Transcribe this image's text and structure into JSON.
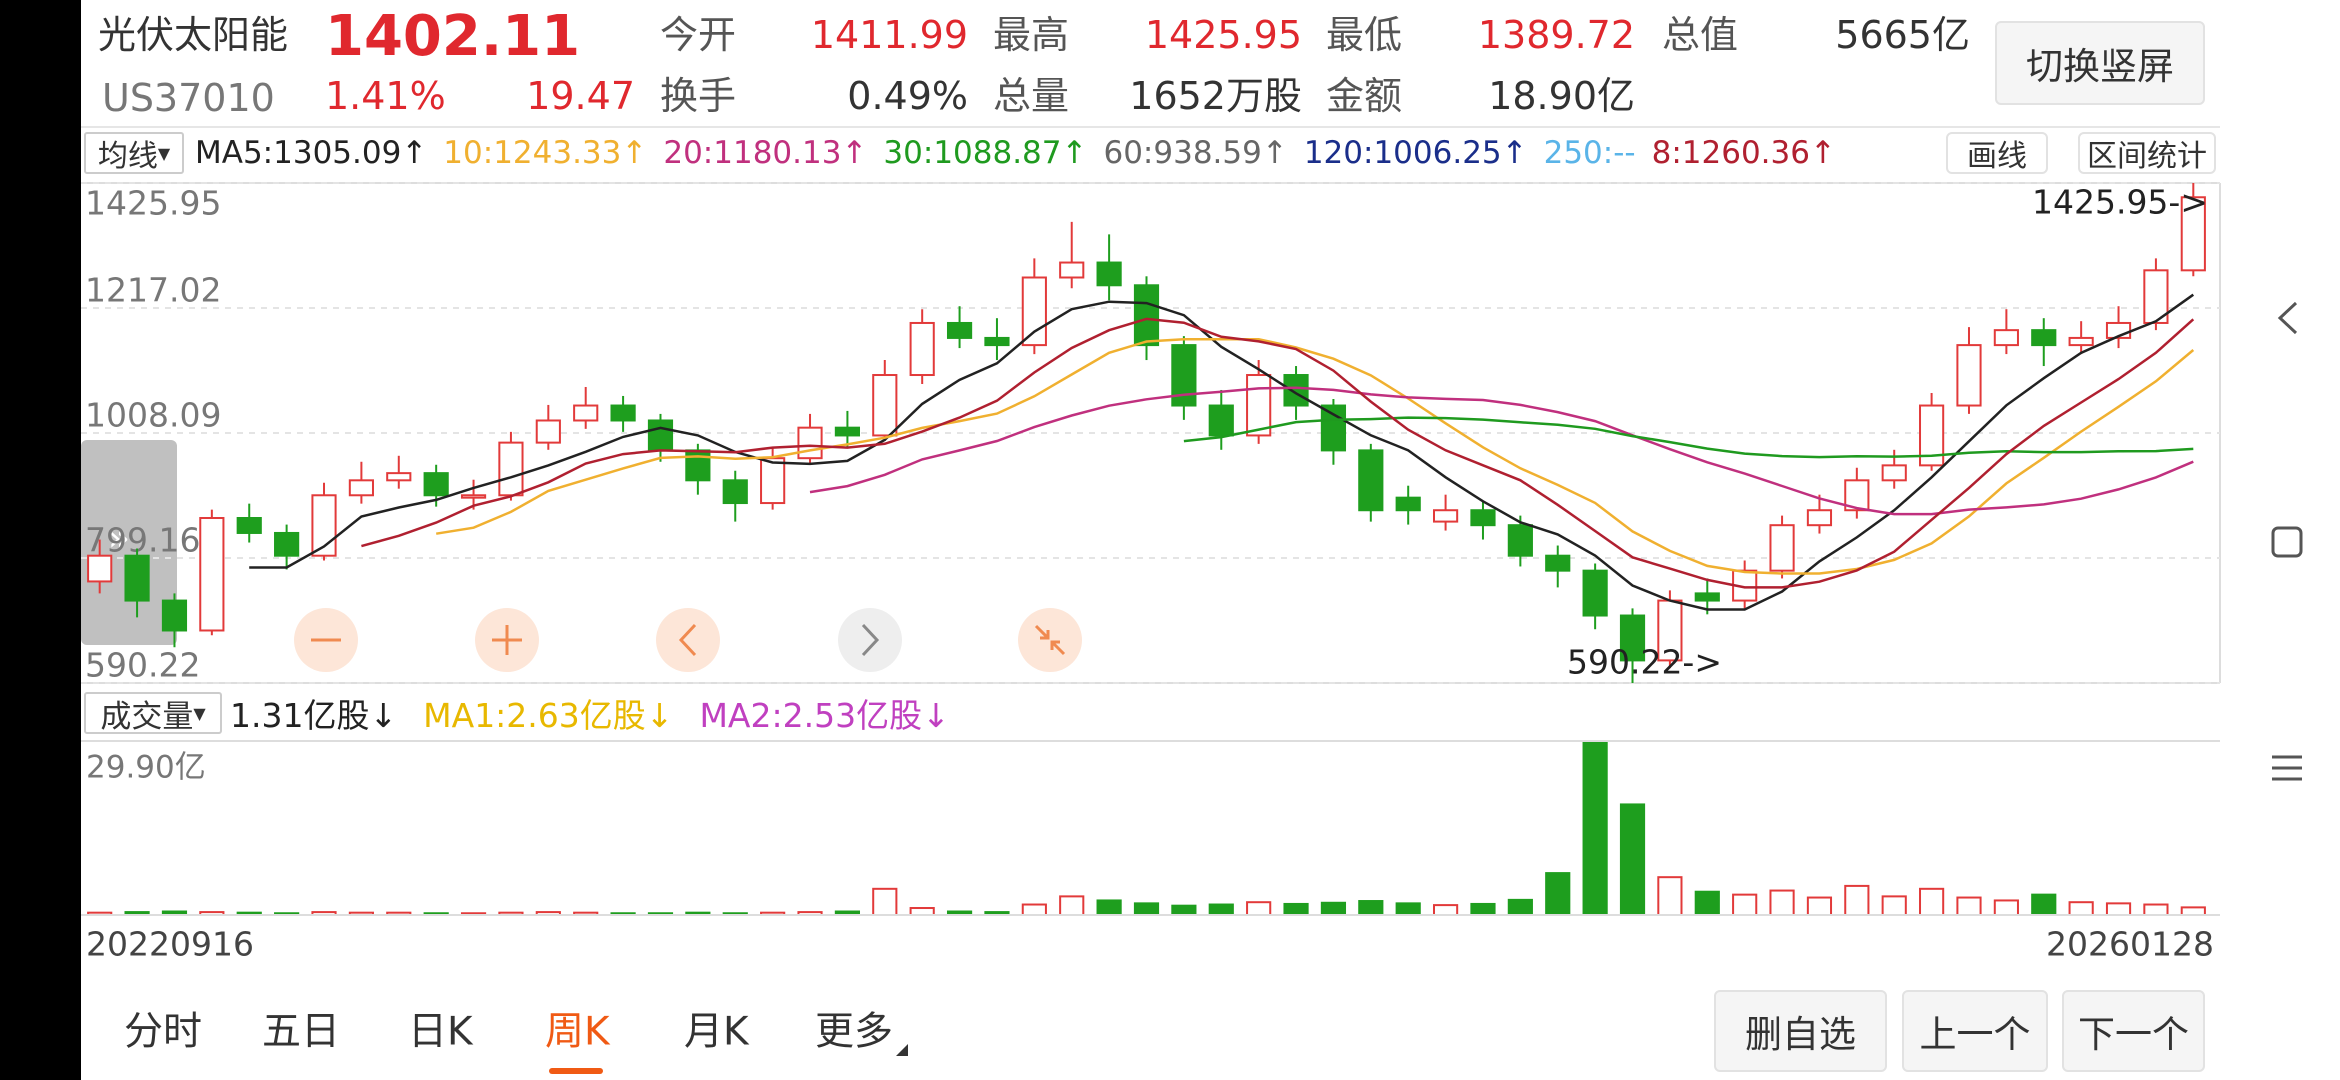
{
  "header": {
    "name": "光伏太阳能",
    "price": 1402.11,
    "code": "US37010",
    "change_pct": "1.41%",
    "change": 19.47,
    "stats_row1": [
      {
        "label": "今开",
        "value": 1411.99
      },
      {
        "label": "最高",
        "value": 1425.95
      },
      {
        "label": "最低",
        "value": 1389.72
      },
      {
        "label": "总值",
        "value": "5665亿"
      }
    ],
    "stats_row2": [
      {
        "label": "换手",
        "value": "0.49%"
      },
      {
        "label": "总量",
        "value": "1652万股"
      },
      {
        "label": "金额",
        "value": "18.90亿"
      }
    ]
  },
  "rotate_button": "切换竖屏",
  "ma_bar": {
    "selector": "均线",
    "items": [
      {
        "label": "MA5:1305.09↑",
        "color": "#222222"
      },
      {
        "label": "10:1243.33↑",
        "color": "#f0b030"
      },
      {
        "label": "20:1180.13↑",
        "color": "#c0307e"
      },
      {
        "label": "30:1088.87↑",
        "color": "#1f9a1f"
      },
      {
        "label": "60:938.59↑",
        "color": "#666666"
      },
      {
        "label": "120:1006.25↑",
        "color": "#1a2e8a"
      },
      {
        "label": "250:--",
        "color": "#5ab4e8"
      },
      {
        "label": "8:1260.36↑",
        "color": "#b02030"
      }
    ],
    "buttons": [
      "画线",
      "区间统计"
    ]
  },
  "chart_data": {
    "type": "candlestick",
    "ylim": [
      590.22,
      1425.95
    ],
    "yticks": [
      590.22,
      799.16,
      1008.09,
      1217.02,
      1425.95
    ],
    "grid": true,
    "up_color": "#e23a3a",
    "down_color": "#1e9e1e",
    "open": [
      760,
      803,
      728,
      678,
      866,
      841,
      803,
      904,
      929,
      941,
      900,
      904,
      992,
      1029,
      1054,
      1029,
      979,
      929,
      891,
      966,
      1017,
      1004,
      1105,
      1192,
      1167,
      1155,
      1268,
      1293,
      1255,
      1155,
      1054,
      1004,
      1105,
      1054,
      979,
      900,
      860,
      879,
      854,
      803,
      778,
      703,
      628,
      740,
      728,
      778,
      854,
      879,
      929,
      954,
      1054,
      1155,
      1180,
      1155,
      1167,
      1192,
      1280
    ],
    "high": [
      830,
      815,
      740,
      880,
      890,
      855,
      925,
      960,
      970,
      955,
      930,
      1010,
      1055,
      1085,
      1070,
      1040,
      990,
      945,
      985,
      1040,
      1045,
      1130,
      1215,
      1220,
      1200,
      1300,
      1361,
      1340,
      1270,
      1170,
      1080,
      1130,
      1120,
      1065,
      990,
      920,
      905,
      895,
      870,
      820,
      790,
      715,
      745,
      765,
      795,
      870,
      905,
      950,
      980,
      1075,
      1185,
      1215,
      1200,
      1195,
      1220,
      1300,
      1425.95
    ],
    "low": [
      740,
      700,
      650,
      670,
      825,
      780,
      795,
      890,
      915,
      885,
      880,
      895,
      980,
      1015,
      1010,
      960,
      905,
      860,
      880,
      955,
      985,
      995,
      1090,
      1150,
      1130,
      1140,
      1250,
      1230,
      1130,
      1030,
      980,
      990,
      1030,
      955,
      860,
      855,
      845,
      830,
      785,
      750,
      680,
      590.22,
      615,
      705,
      715,
      765,
      840,
      865,
      915,
      945,
      1040,
      1140,
      1120,
      1140,
      1150,
      1180,
      1270
    ],
    "close": [
      803,
      728,
      678,
      866,
      841,
      803,
      904,
      929,
      941,
      904,
      904,
      992,
      1029,
      1054,
      1029,
      979,
      929,
      891,
      966,
      1017,
      1004,
      1105,
      1192,
      1167,
      1155,
      1268,
      1293,
      1255,
      1155,
      1054,
      1004,
      1105,
      1054,
      979,
      879,
      879,
      879,
      854,
      803,
      778,
      703,
      628,
      728,
      728,
      778,
      854,
      879,
      929,
      954,
      1054,
      1155,
      1180,
      1155,
      1167,
      1192,
      1280,
      1402.11
    ],
    "annotations": [
      "1425.95->",
      "590.22->"
    ],
    "volume": {
      "selector": "成交量",
      "items": [
        {
          "label": "1.31亿股↓",
          "color": "#222222"
        },
        {
          "label": "MA1:2.63亿股↓",
          "color": "#e8b800"
        },
        {
          "label": "MA2:2.53亿股↓",
          "color": "#c040c0"
        }
      ],
      "ylim": [
        0,
        29.9
      ],
      "yticks": [
        {
          "value": 29.9,
          "label": "29.90亿"
        }
      ],
      "values": [
        0.4,
        0.5,
        0.6,
        0.5,
        0.4,
        0.3,
        0.5,
        0.4,
        0.4,
        0.3,
        0.3,
        0.4,
        0.5,
        0.4,
        0.3,
        0.3,
        0.4,
        0.3,
        0.4,
        0.5,
        0.6,
        4.5,
        1.2,
        0.6,
        0.5,
        1.8,
        3.2,
        2.5,
        2.0,
        1.6,
        1.8,
        2.2,
        1.9,
        2.1,
        2.4,
        2.0,
        1.7,
        1.9,
        2.6,
        7.2,
        29.9,
        19.0,
        6.5,
        4.0,
        3.5,
        4.2,
        3.0,
        5.0,
        3.2,
        4.5,
        3.0,
        2.5,
        3.5,
        2.2,
        2.0,
        1.8,
        1.31
      ]
    },
    "x_labels": [
      "20220916",
      "20260128"
    ]
  },
  "tabs": [
    "分时",
    "五日",
    "日K",
    "周K",
    "月K",
    "更多"
  ],
  "selected_tab": "周K",
  "actions": [
    "删自选",
    "上一个",
    "下一个"
  ]
}
